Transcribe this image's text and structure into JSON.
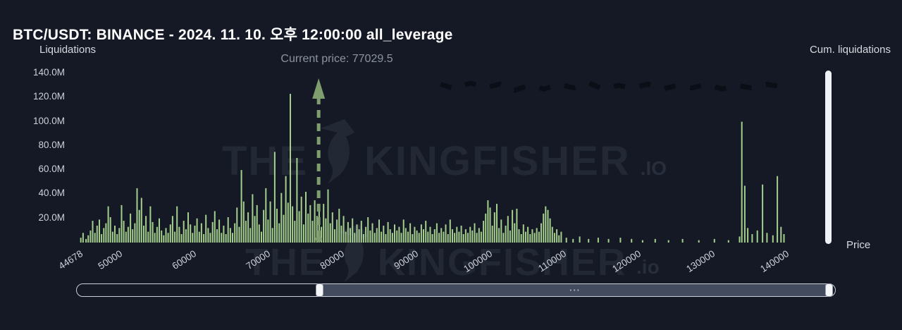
{
  "header": {
    "title": "BTC/USDT: BINANCE - 2024. 11. 10. 오후 12:00:00 all_leverage",
    "left_axis_label": "Liquidations",
    "right_axis_label": "Cum. liquidations",
    "price_axis_label": "Price"
  },
  "annotation": {
    "current_price_label": "Current price: 77029.5"
  },
  "watermark": {
    "word1": "THE",
    "word2": "KINGFISHER",
    "suffix_top": ".IO",
    "suffix_bottom": ".io"
  },
  "slider": {
    "grip": "···"
  },
  "colors": {
    "background": "#141925",
    "bar": "#a5cf8d",
    "arrow": "#7f9e6d",
    "cumulative_line": "#0a0e16",
    "axis_text": "#ccd1d9",
    "title_text": "#ffffff",
    "annotation_text": "#8d949e",
    "scrollbar": "#eef1f5",
    "slider_fill": "#434c5e"
  },
  "chart_data": {
    "type": "bar",
    "title": "BTC/USDT: BINANCE - 2024. 11. 10. 오후 12:00:00 all_leverage",
    "xlabel": "Price",
    "ylabel": "Liquidations",
    "legend": [
      "Liquidations",
      "Cum. liquidations"
    ],
    "grid": false,
    "current_price": 77029.5,
    "x_domain": [
      43500,
      146800
    ],
    "y_axis": {
      "max": 140,
      "unit": "M",
      "ticks": [
        {
          "label": "140.0M",
          "value": 140
        },
        {
          "label": "120.0M",
          "value": 120
        },
        {
          "label": "100.0M",
          "value": 100
        },
        {
          "label": "80.0M",
          "value": 80
        },
        {
          "label": "60.0M",
          "value": 60
        },
        {
          "label": "40.0M",
          "value": 40
        },
        {
          "label": "20.0M",
          "value": 20
        }
      ]
    },
    "x_axis": {
      "ticks": [
        44678,
        50000,
        60000,
        70000,
        80000,
        90000,
        100000,
        110000,
        120000,
        130000,
        140000
      ]
    },
    "bars": [
      [
        44900,
        4
      ],
      [
        45200,
        8
      ],
      [
        45600,
        3
      ],
      [
        45900,
        6
      ],
      [
        46200,
        10
      ],
      [
        46500,
        18
      ],
      [
        46800,
        8
      ],
      [
        47100,
        14
      ],
      [
        47400,
        19
      ],
      [
        47700,
        7
      ],
      [
        48000,
        12
      ],
      [
        48300,
        16
      ],
      [
        48600,
        30
      ],
      [
        48900,
        21
      ],
      [
        49200,
        9
      ],
      [
        49500,
        14
      ],
      [
        49800,
        7
      ],
      [
        50100,
        12
      ],
      [
        50400,
        31
      ],
      [
        50700,
        18
      ],
      [
        51000,
        9
      ],
      [
        51300,
        13
      ],
      [
        51600,
        24
      ],
      [
        51900,
        11
      ],
      [
        52200,
        16
      ],
      [
        52500,
        45
      ],
      [
        52800,
        27
      ],
      [
        53100,
        37
      ],
      [
        53400,
        14
      ],
      [
        53700,
        22
      ],
      [
        54000,
        9
      ],
      [
        54300,
        30
      ],
      [
        54600,
        17
      ],
      [
        54900,
        8
      ],
      [
        55200,
        13
      ],
      [
        55500,
        20
      ],
      [
        55800,
        10
      ],
      [
        56100,
        6
      ],
      [
        56400,
        12
      ],
      [
        56700,
        8
      ],
      [
        57000,
        15
      ],
      [
        57300,
        22
      ],
      [
        57600,
        9
      ],
      [
        57900,
        30
      ],
      [
        58200,
        13
      ],
      [
        58500,
        7
      ],
      [
        58800,
        18
      ],
      [
        59100,
        11
      ],
      [
        59400,
        25
      ],
      [
        59700,
        15
      ],
      [
        60000,
        8
      ],
      [
        60300,
        14
      ],
      [
        60600,
        20
      ],
      [
        60900,
        9
      ],
      [
        61200,
        16
      ],
      [
        61500,
        7
      ],
      [
        61800,
        23
      ],
      [
        62100,
        12
      ],
      [
        62400,
        8
      ],
      [
        62700,
        17
      ],
      [
        63000,
        26
      ],
      [
        63300,
        11
      ],
      [
        63600,
        19
      ],
      [
        63900,
        8
      ],
      [
        64200,
        14
      ],
      [
        64500,
        7
      ],
      [
        64800,
        21
      ],
      [
        65100,
        12
      ],
      [
        65400,
        8
      ],
      [
        65700,
        16
      ],
      [
        66000,
        29
      ],
      [
        66300,
        13
      ],
      [
        66600,
        60
      ],
      [
        66900,
        34
      ],
      [
        67200,
        18
      ],
      [
        67500,
        25
      ],
      [
        67800,
        12
      ],
      [
        68100,
        40
      ],
      [
        68400,
        22
      ],
      [
        68700,
        31
      ],
      [
        69000,
        15
      ],
      [
        69300,
        9
      ],
      [
        69600,
        27
      ],
      [
        69900,
        45
      ],
      [
        70200,
        19
      ],
      [
        70500,
        34
      ],
      [
        70800,
        12
      ],
      [
        71100,
        75
      ],
      [
        71400,
        28
      ],
      [
        71700,
        16
      ],
      [
        72000,
        41
      ],
      [
        72300,
        23
      ],
      [
        72600,
        55
      ],
      [
        72900,
        33
      ],
      [
        73200,
        123
      ],
      [
        73500,
        30
      ],
      [
        73800,
        18
      ],
      [
        74100,
        70
      ],
      [
        74400,
        26
      ],
      [
        74700,
        38
      ],
      [
        75000,
        15
      ],
      [
        75300,
        42
      ],
      [
        75600,
        24
      ],
      [
        75900,
        31
      ],
      [
        76200,
        18
      ],
      [
        76500,
        35
      ],
      [
        76800,
        22
      ],
      [
        77100,
        27
      ],
      [
        77400,
        13
      ],
      [
        77700,
        32
      ],
      [
        78000,
        20
      ],
      [
        78300,
        44
      ],
      [
        78600,
        16
      ],
      [
        78900,
        25
      ],
      [
        79200,
        11
      ],
      [
        79500,
        19
      ],
      [
        79800,
        28
      ],
      [
        80100,
        14
      ],
      [
        80400,
        22
      ],
      [
        80700,
        9
      ],
      [
        81000,
        17
      ],
      [
        81300,
        12
      ],
      [
        81600,
        20
      ],
      [
        81900,
        8
      ],
      [
        82200,
        15
      ],
      [
        82500,
        11
      ],
      [
        82800,
        18
      ],
      [
        83100,
        7
      ],
      [
        83400,
        13
      ],
      [
        83700,
        21
      ],
      [
        84000,
        10
      ],
      [
        84300,
        16
      ],
      [
        84600,
        8
      ],
      [
        84900,
        12
      ],
      [
        85200,
        19
      ],
      [
        85500,
        9
      ],
      [
        85800,
        14
      ],
      [
        86100,
        7
      ],
      [
        86400,
        17
      ],
      [
        86700,
        11
      ],
      [
        87000,
        8
      ],
      [
        87300,
        15
      ],
      [
        87600,
        10
      ],
      [
        87900,
        13
      ],
      [
        88200,
        8
      ],
      [
        88500,
        19
      ],
      [
        88800,
        12
      ],
      [
        89100,
        9
      ],
      [
        89400,
        16
      ],
      [
        89700,
        7
      ],
      [
        90000,
        13
      ],
      [
        90300,
        10
      ],
      [
        90600,
        8
      ],
      [
        90900,
        15
      ],
      [
        91200,
        11
      ],
      [
        91500,
        18
      ],
      [
        91800,
        9
      ],
      [
        92100,
        13
      ],
      [
        92400,
        7
      ],
      [
        92700,
        11
      ],
      [
        93000,
        16
      ],
      [
        93300,
        8
      ],
      [
        93600,
        12
      ],
      [
        93900,
        9
      ],
      [
        94200,
        15
      ],
      [
        94500,
        7
      ],
      [
        94800,
        19
      ],
      [
        95100,
        11
      ],
      [
        95400,
        8
      ],
      [
        95700,
        13
      ],
      [
        96000,
        9
      ],
      [
        96300,
        14
      ],
      [
        96600,
        7
      ],
      [
        96900,
        11
      ],
      [
        97200,
        8
      ],
      [
        97500,
        13
      ],
      [
        97800,
        10
      ],
      [
        98100,
        16
      ],
      [
        98400,
        8
      ],
      [
        98700,
        12
      ],
      [
        99000,
        9
      ],
      [
        99300,
        18
      ],
      [
        99600,
        24
      ],
      [
        99900,
        35
      ],
      [
        100200,
        29
      ],
      [
        100500,
        14
      ],
      [
        100800,
        25
      ],
      [
        101100,
        32
      ],
      [
        101400,
        12
      ],
      [
        101700,
        19
      ],
      [
        102000,
        8
      ],
      [
        102300,
        14
      ],
      [
        102600,
        22
      ],
      [
        102900,
        10
      ],
      [
        103200,
        27
      ],
      [
        103500,
        16
      ],
      [
        103800,
        28
      ],
      [
        104100,
        11
      ],
      [
        104400,
        7
      ],
      [
        104700,
        15
      ],
      [
        105000,
        9
      ],
      [
        105300,
        13
      ],
      [
        105600,
        7
      ],
      [
        105900,
        11
      ],
      [
        106200,
        8
      ],
      [
        106500,
        12
      ],
      [
        106800,
        9
      ],
      [
        107100,
        16
      ],
      [
        107400,
        24
      ],
      [
        107700,
        30
      ],
      [
        108000,
        27
      ],
      [
        108300,
        20
      ],
      [
        108600,
        13
      ],
      [
        108900,
        8
      ],
      [
        109200,
        11
      ],
      [
        109500,
        6
      ],
      [
        109800,
        9
      ],
      [
        110500,
        4
      ],
      [
        111400,
        3
      ],
      [
        112300,
        5
      ],
      [
        113500,
        3
      ],
      [
        114800,
        4
      ],
      [
        116200,
        3
      ],
      [
        117800,
        4
      ],
      [
        119300,
        3
      ],
      [
        120800,
        2
      ],
      [
        122500,
        3
      ],
      [
        124300,
        2
      ],
      [
        126200,
        3
      ],
      [
        128400,
        2
      ],
      [
        130500,
        3
      ],
      [
        132400,
        2
      ],
      [
        133900,
        5
      ],
      [
        134200,
        100
      ],
      [
        134600,
        47
      ],
      [
        135000,
        12
      ],
      [
        135600,
        7
      ],
      [
        136300,
        10
      ],
      [
        137000,
        48
      ],
      [
        137600,
        8
      ],
      [
        138400,
        6
      ],
      [
        139000,
        55
      ],
      [
        139500,
        13
      ],
      [
        139900,
        7
      ]
    ],
    "cumulative": [
      [
        93500,
        131
      ],
      [
        95500,
        127
      ],
      [
        97500,
        132
      ],
      [
        99500,
        128
      ],
      [
        101500,
        131
      ],
      [
        103500,
        126
      ],
      [
        105500,
        130
      ],
      [
        107500,
        127
      ],
      [
        109500,
        131
      ],
      [
        111500,
        128
      ],
      [
        113500,
        132
      ],
      [
        115500,
        127
      ],
      [
        117500,
        130
      ],
      [
        119500,
        128
      ],
      [
        121500,
        131
      ],
      [
        123500,
        127
      ],
      [
        125500,
        130
      ],
      [
        127500,
        128
      ],
      [
        129500,
        131
      ],
      [
        131500,
        127
      ],
      [
        133500,
        130
      ],
      [
        135500,
        128
      ],
      [
        137500,
        131
      ],
      [
        139500,
        129
      ],
      [
        140800,
        131
      ]
    ]
  }
}
